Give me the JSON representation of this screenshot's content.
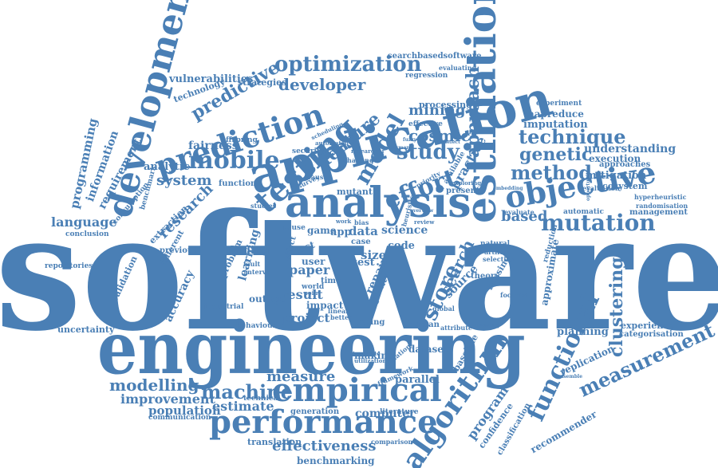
{
  "colors": {
    "word": "#4a7fb5",
    "background": "#ffffff"
  },
  "words": {
    "software": "software",
    "engineering": "engineering",
    "application": "application",
    "analysis": "analysis",
    "estimation": "estimation",
    "development": "development",
    "prediction": "prediction",
    "testing": "testing",
    "objective": "objective",
    "empirical": "empirical",
    "performance": "performance",
    "algorithm": "algorithm",
    "functional": "functional",
    "measurement": "measurement",
    "mutation": "mutation",
    "optimization": "optimization",
    "mobile": "mobile",
    "model": "model",
    "effort": "effort",
    "study": "study",
    "approach": "approach",
    "technique": "technique",
    "method": "method",
    "genetic": "genetic",
    "store": "store",
    "search": "search",
    "clustering": "clustering",
    "machine": "machine",
    "modelling": "modelling",
    "improvement": "improvement",
    "estimate": "estimate",
    "population": "population",
    "effectiveness": "effectiveness",
    "benchmarking": "benchmarking",
    "translation": "translation",
    "computer": "computer",
    "program": "program",
    "confidence": "confidence",
    "classification": "classification",
    "recommender": "recommender",
    "replication": "replication",
    "planning": "planning",
    "experience": "experience",
    "categorisation": "categorisation",
    "language": "language",
    "programming": "programming",
    "information": "information",
    "requirement": "requirement",
    "research": "research",
    "system": "system",
    "analytic": "analytic",
    "fairness": "fairness",
    "feature": "feature",
    "cosmic": "cosmic",
    "mining": "mining",
    "developer": "developer",
    "predictive": "predictive",
    "vulnerabilities": "vulnerabilities",
    "technology": "technology",
    "strategies": "strategies",
    "searchbasedsoftware": "searchbasedsoftware",
    "imputation": "imputation",
    "mapreduce": "mapreduce",
    "experiment": "experiment",
    "understanding": "understanding",
    "execution": "execution",
    "approaches": "approaches",
    "mitigation": "mitigation",
    "ecosystem": "ecosystem",
    "based": "based",
    "evaluate": "evaluate",
    "automatic": "automatic",
    "management": "management",
    "hyperheuristic": "hyperheuristic",
    "randomisation": "randomisation",
    "approximate": "approximate",
    "reduction": "reduction",
    "evaluation": "evaluation",
    "processing": "processing",
    "effective": "effective",
    "practice": "practice",
    "result": "result",
    "paper": "paper",
    "project": "project",
    "impact": "impact",
    "outage": "outage",
    "finding": "finding",
    "learning": "learning",
    "problem": "problem",
    "accuracy": "accuracy",
    "validation": "validation",
    "different": "different",
    "extraction": "extraction",
    "consumption": "consumption",
    "benchmark": "benchmark",
    "conclusion": "conclusion",
    "repositories": "repositories",
    "uncertainty": "uncertainty",
    "previous": "previous",
    "industrial": "industrial",
    "behaviour": "behaviour",
    "measure": "measure",
    "making": "making",
    "dataset": "dataset",
    "baseline": "baseline",
    "parallel": "parallel",
    "literature": "literature",
    "comparison": "comparison",
    "generation": "generation",
    "technical": "technical",
    "communication": "communication",
    "rating": "rating",
    "quality": "quality",
    "repair": "repair",
    "source": "source",
    "theory": "theory",
    "human": "human",
    "science": "science",
    "code": "code",
    "size": "size",
    "app": "app",
    "data": "data",
    "game": "game",
    "case": "case",
    "test": "test",
    "user": "user",
    "cost": "cost",
    "effect": "effect",
    "time": "time",
    "world": "world",
    "mutant": "mutant",
    "function": "function",
    "security": "security",
    "offspring": "offspring",
    "present": "present",
    "exploring": "exploring",
    "challenge": "challenge",
    "causal": "causal",
    "survey": "survey",
    "missing": "missing",
    "natural": "natural",
    "artifact": "artifact",
    "selection": "selection",
    "focused": "focused",
    "global": "global",
    "attribute": "attribute",
    "template": "template",
    "utilization": "utilization",
    "reuse": "reuse",
    "regression": "regression",
    "evaluating": "evaluating",
    "better": "better",
    "linear": "linear",
    "fault": "fault",
    "interval": "interval",
    "studies": "studies",
    "bias": "bias",
    "work": "work",
    "review": "review",
    "priority": "priority",
    "automated": "automated",
    "point": "point",
    "available": "available",
    "framework": "framework",
    "heuristic": "heuristic",
    "inflation": "inflation",
    "scheduling": "scheduling",
    "researcher": "researcher",
    "assessment": "assessment",
    "overview": "overview",
    "defect": "defect",
    "fuzzy": "fuzzy",
    "embedding": "embedding",
    "ensemble": "ensemble",
    "opportunities": "opportunities",
    "framing": "framing"
  }
}
